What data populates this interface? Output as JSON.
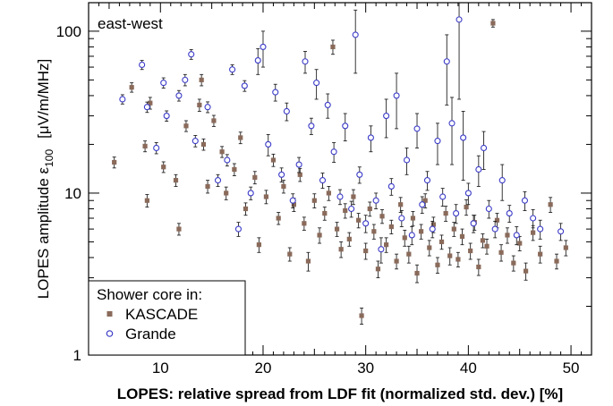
{
  "chart_data": {
    "type": "scatter",
    "title": "",
    "panel_label": "east-west",
    "xlabel": "LOPES: relative spread from LDF fit (normalized std. dev.) [%]",
    "ylabel": "LOPES amplitude  ε",
    "ylabel_subscript": "100",
    "ylabel_unit": "[μV/m/MHz]",
    "xlim": [
      3,
      52
    ],
    "ylim": [
      1,
      150
    ],
    "yscale": "log",
    "x_ticks": [
      "10",
      "20",
      "30",
      "40",
      "50"
    ],
    "x_tick_values": [
      10,
      20,
      30,
      40,
      50
    ],
    "y_ticks": [
      "1",
      "10",
      "100"
    ],
    "y_tick_values": [
      1,
      10,
      100
    ],
    "grid": false,
    "legend_position": "bottom-left",
    "legend_title": "Shower core in:",
    "series": [
      {
        "name": "KASCADE",
        "marker": "filled-square",
        "color": "#8a6a5a",
        "points": [
          [
            5.5,
            15.5,
            1.2
          ],
          [
            7.2,
            45,
            3
          ],
          [
            8.5,
            19.5,
            1.5
          ],
          [
            8.7,
            9,
            0.8
          ],
          [
            9.0,
            36,
            3
          ],
          [
            10.3,
            14.5,
            1.1
          ],
          [
            11.5,
            12,
            1
          ],
          [
            11.8,
            6,
            0.5
          ],
          [
            12.5,
            26,
            2
          ],
          [
            13.8,
            35,
            3
          ],
          [
            14.0,
            50,
            4
          ],
          [
            14.2,
            20,
            1.6
          ],
          [
            14.6,
            11,
            1
          ],
          [
            15.2,
            28,
            2.2
          ],
          [
            16.0,
            18,
            1.4
          ],
          [
            16.4,
            10,
            0.9
          ],
          [
            17.2,
            14,
            1.2
          ],
          [
            17.8,
            22,
            1.8
          ],
          [
            18.3,
            8,
            0.7
          ],
          [
            19.2,
            12.5,
            1.1
          ],
          [
            19.6,
            4.8,
            0.5
          ],
          [
            20.3,
            9.5,
            0.9
          ],
          [
            21.0,
            16,
            1.4
          ],
          [
            21.5,
            7,
            0.6
          ],
          [
            22.0,
            11,
            1
          ],
          [
            22.6,
            4.2,
            0.4
          ],
          [
            23.0,
            8.5,
            0.8
          ],
          [
            23.6,
            13,
            1.2
          ],
          [
            24.0,
            6.5,
            0.6
          ],
          [
            24.4,
            3.8,
            0.5
          ],
          [
            25.0,
            9,
            0.9
          ],
          [
            25.5,
            5.5,
            0.6
          ],
          [
            26.0,
            7.5,
            0.7
          ],
          [
            26.4,
            10,
            1
          ],
          [
            26.8,
            80,
            8
          ],
          [
            27.2,
            6,
            0.6
          ],
          [
            27.6,
            4.5,
            0.5
          ],
          [
            28.0,
            7.8,
            0.8
          ],
          [
            28.4,
            5.2,
            0.5
          ],
          [
            28.8,
            9.5,
            1
          ],
          [
            29.3,
            6.8,
            0.7
          ],
          [
            29.6,
            1.75,
            0.2
          ],
          [
            30.0,
            4.4,
            0.5
          ],
          [
            30.4,
            8,
            0.8
          ],
          [
            30.8,
            5.8,
            0.6
          ],
          [
            31.2,
            3.4,
            0.4
          ],
          [
            31.6,
            7.2,
            0.7
          ],
          [
            32.0,
            4.8,
            0.5
          ],
          [
            32.5,
            6.2,
            0.6
          ],
          [
            33.0,
            3.8,
            0.4
          ],
          [
            33.4,
            8.5,
            0.9
          ],
          [
            33.8,
            5.3,
            0.6
          ],
          [
            34.2,
            4.2,
            0.5
          ],
          [
            34.6,
            7,
            0.7
          ],
          [
            35.0,
            3.2,
            0.4
          ],
          [
            35.4,
            5.8,
            0.6
          ],
          [
            35.8,
            9,
            0.9
          ],
          [
            36.2,
            4.6,
            0.5
          ],
          [
            36.6,
            6.4,
            0.7
          ],
          [
            37.0,
            3.6,
            0.4
          ],
          [
            37.4,
            5,
            0.5
          ],
          [
            37.8,
            7.5,
            0.8
          ],
          [
            38.2,
            4.1,
            0.5
          ],
          [
            38.6,
            6,
            0.6
          ],
          [
            39.0,
            3.9,
            0.4
          ],
          [
            39.4,
            5.4,
            0.6
          ],
          [
            39.8,
            8.2,
            0.9
          ],
          [
            40.2,
            4.4,
            0.5
          ],
          [
            40.6,
            6.6,
            0.7
          ],
          [
            41.0,
            3.5,
            0.4
          ],
          [
            41.4,
            5.1,
            0.5
          ],
          [
            41.8,
            4.7,
            0.5
          ],
          [
            42.4,
            112,
            6
          ],
          [
            42.8,
            6.8,
            0.7
          ],
          [
            43.2,
            4.3,
            0.5
          ],
          [
            43.8,
            5.5,
            0.6
          ],
          [
            44.4,
            3.7,
            0.4
          ],
          [
            45.0,
            4.9,
            0.5
          ],
          [
            45.6,
            3.3,
            0.4
          ],
          [
            46.3,
            5.7,
            0.6
          ],
          [
            47.0,
            4.2,
            0.5
          ],
          [
            48.0,
            8.5,
            0.9
          ],
          [
            48.6,
            3.8,
            0.4
          ],
          [
            49.5,
            4.6,
            0.5
          ]
        ]
      },
      {
        "name": "Grande",
        "marker": "open-circle",
        "color": "#3b3bc8",
        "points": [
          [
            6.3,
            38,
            2.5
          ],
          [
            8.2,
            62,
            4
          ],
          [
            8.7,
            34,
            2.5
          ],
          [
            9.6,
            19,
            1.5
          ],
          [
            10.3,
            48,
            3.5
          ],
          [
            10.6,
            30,
            2.2
          ],
          [
            11.8,
            40,
            3
          ],
          [
            12.4,
            50,
            4
          ],
          [
            13.0,
            72,
            5
          ],
          [
            13.4,
            21,
            1.7
          ],
          [
            14.6,
            34,
            2.6
          ],
          [
            15.6,
            12,
            1
          ],
          [
            16.5,
            16,
            1.3
          ],
          [
            17.0,
            58,
            4
          ],
          [
            17.6,
            6,
            0.6
          ],
          [
            18.2,
            46,
            3.5
          ],
          [
            18.8,
            10,
            0.9
          ],
          [
            19.5,
            66,
            12
          ],
          [
            20.0,
            80,
            20
          ],
          [
            20.5,
            20,
            3
          ],
          [
            21.2,
            42,
            5
          ],
          [
            21.8,
            13,
            1.3
          ],
          [
            22.3,
            32,
            4
          ],
          [
            22.9,
            9,
            0.9
          ],
          [
            23.5,
            15,
            1.6
          ],
          [
            24.1,
            65,
            10
          ],
          [
            24.7,
            26,
            3
          ],
          [
            25.2,
            48,
            10
          ],
          [
            25.8,
            12,
            1.3
          ],
          [
            26.3,
            35,
            6
          ],
          [
            26.9,
            18,
            2.5
          ],
          [
            27.5,
            9.5,
            1
          ],
          [
            28.0,
            26,
            5
          ],
          [
            28.6,
            8,
            0.9
          ],
          [
            29.0,
            95,
            40
          ],
          [
            29.4,
            13,
            1.5
          ],
          [
            30.0,
            6.5,
            0.8
          ],
          [
            30.5,
            22,
            4
          ],
          [
            31.0,
            9,
            1
          ],
          [
            31.5,
            4.5,
            0.8
          ],
          [
            32.0,
            30,
            8
          ],
          [
            32.5,
            11,
            1.3
          ],
          [
            33.0,
            40,
            15
          ],
          [
            33.5,
            7,
            0.8
          ],
          [
            34.0,
            16,
            3
          ],
          [
            34.5,
            5.5,
            0.7
          ],
          [
            35.0,
            25,
            6
          ],
          [
            35.5,
            8.5,
            1
          ],
          [
            36.0,
            12,
            1.6
          ],
          [
            36.5,
            6,
            0.7
          ],
          [
            37.0,
            21,
            6
          ],
          [
            37.5,
            9.5,
            1.2
          ],
          [
            37.9,
            65,
            30
          ],
          [
            38.4,
            27,
            12
          ],
          [
            38.8,
            7.5,
            1
          ],
          [
            39.1,
            118,
            80
          ],
          [
            39.5,
            22,
            10
          ],
          [
            40.0,
            10,
            1.5
          ],
          [
            40.5,
            6.5,
            0.8
          ],
          [
            41.0,
            14,
            3
          ],
          [
            41.5,
            19,
            5
          ],
          [
            42.0,
            8,
            1
          ],
          [
            42.6,
            6,
            0.7
          ],
          [
            43.3,
            12,
            3
          ],
          [
            44.0,
            7.5,
            0.9
          ],
          [
            44.7,
            5.5,
            0.7
          ],
          [
            45.5,
            9,
            1.2
          ],
          [
            46.3,
            7,
            0.9
          ],
          [
            47.0,
            6,
            0.8
          ],
          [
            49.0,
            5.8,
            0.7
          ]
        ]
      }
    ]
  }
}
